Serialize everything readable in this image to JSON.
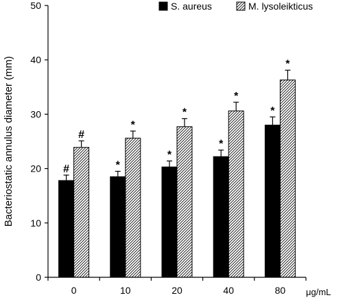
{
  "chart_data": {
    "type": "bar",
    "title": "",
    "xlabel": "",
    "x_unit_label": "μg/mL",
    "ylabel": "Bacteriostatic annulus diameter (mm)",
    "ylim": [
      0,
      50
    ],
    "yticks": [
      0,
      10,
      20,
      30,
      40,
      50
    ],
    "categories": [
      "0",
      "10",
      "20",
      "40",
      "80"
    ],
    "grid": false,
    "legend_position": "top-right",
    "series": [
      {
        "name": "S. aureus",
        "fill": "solid",
        "color": "#000000",
        "values": [
          17.8,
          18.5,
          20.3,
          22.2,
          28.0
        ],
        "errors": [
          1.0,
          1.0,
          1.1,
          1.2,
          1.5
        ],
        "significance": [
          "#",
          "*",
          "*",
          "*",
          "*"
        ]
      },
      {
        "name": "M. lysoleikticus",
        "fill": "hatched",
        "color": "#ffffff",
        "values": [
          23.9,
          25.6,
          27.7,
          30.6,
          36.3
        ],
        "errors": [
          1.2,
          1.3,
          1.5,
          1.6,
          1.8
        ],
        "significance": [
          "#",
          "*",
          "*",
          "*",
          "*"
        ]
      }
    ]
  }
}
